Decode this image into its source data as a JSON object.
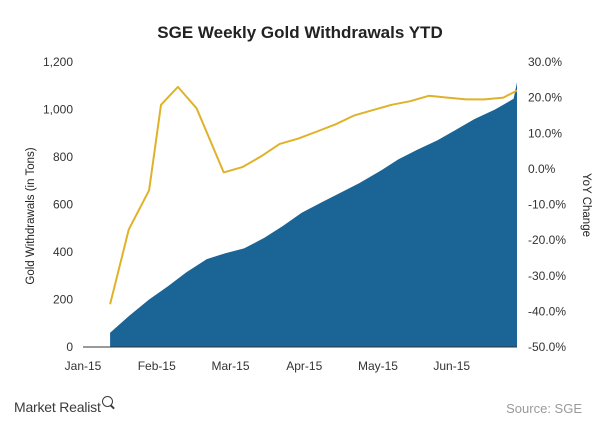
{
  "chart_data": {
    "type": "area",
    "title": "SGE Weekly Gold Withdrawals YTD",
    "xlabel": "",
    "ylabel": "Gold Withdrawals (in Tons)",
    "y2label": "YoY Change",
    "x_tick_labels": [
      "Jan-15",
      "Feb-15",
      "Mar-15",
      "Apr-15",
      "May-15",
      "Jun-15"
    ],
    "y_tick_labels": [
      "0",
      "200",
      "400",
      "600",
      "800",
      "1,000",
      "1,200"
    ],
    "y2_tick_labels": [
      "-50.0%",
      "-40.0%",
      "-30.0%",
      "-20.0%",
      "-10.0%",
      "0.0%",
      "10.0%",
      "20.0%",
      "30.0%"
    ],
    "ylim": [
      0,
      1200
    ],
    "y2lim": [
      -50,
      30
    ],
    "x_range_weeks": [
      0,
      25.6
    ],
    "legend": "none",
    "series": [
      {
        "name": "Gold Withdrawals (in Tons)",
        "type": "area",
        "axis": "left",
        "color": "#1a6496",
        "x_weeks": [
          1.6,
          2.7,
          3.9,
          5.0,
          6.1,
          7.3,
          8.4,
          9.5,
          10.7,
          11.8,
          12.9,
          14.1,
          15.2,
          16.3,
          17.5,
          18.6,
          19.7,
          20.9,
          22.0,
          23.1,
          24.3,
          25.4
        ],
        "values": [
          60,
          130,
          200,
          255,
          315,
          370,
          395,
          415,
          460,
          510,
          565,
          610,
          650,
          690,
          740,
          790,
          830,
          870,
          915,
          960,
          1000,
          1045
        ]
      },
      {
        "name": "YoY Change",
        "type": "line",
        "axis": "right",
        "color": "#e0b22a",
        "x_weeks": [
          1.6,
          2.7,
          3.9,
          4.6,
          5.6,
          6.7,
          8.3,
          9.4,
          10.5,
          11.6,
          12.7,
          13.8,
          14.9,
          16.0,
          17.1,
          18.2,
          19.3,
          20.4,
          21.5,
          22.6,
          23.7,
          24.8,
          25.6
        ],
        "values": [
          -38,
          -17,
          -6,
          18,
          23,
          17,
          -1,
          0.5,
          3.5,
          7,
          8.5,
          10.5,
          12.5,
          15,
          16.5,
          18,
          19,
          20.5,
          20,
          19.5,
          19.5,
          20,
          22
        ]
      }
    ]
  },
  "footer": {
    "brand": "Market Realist",
    "source": "Source: SGE"
  }
}
